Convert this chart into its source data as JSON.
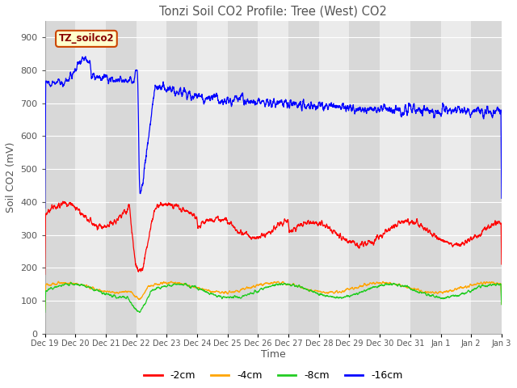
{
  "title": "Tonzi Soil CO2 Profile: Tree (West) CO2",
  "ylabel": "Soil CO2 (mV)",
  "xlabel": "Time",
  "legend_label": "TZ_soilco2",
  "ylim": [
    0,
    950
  ],
  "yticks": [
    0,
    100,
    200,
    300,
    400,
    500,
    600,
    700,
    800,
    900
  ],
  "series": {
    "-2cm": {
      "color": "#ff0000"
    },
    "-4cm": {
      "color": "#ffa500"
    },
    "-8cm": {
      "color": "#22cc22"
    },
    "-16cm": {
      "color": "#0000ff"
    }
  },
  "plot_bg_color": "#e8e8e8",
  "band_color_dark": "#d8d8d8",
  "band_color_light": "#ebebeb",
  "title_color": "#555555",
  "axis_label_color": "#555555",
  "tick_label_color": "#555555",
  "tick_labels": [
    "Dec 19",
    "Dec 20",
    "Dec 21",
    "Dec 22",
    "Dec 23",
    "Dec 24",
    "Dec 25",
    "Dec 26",
    "Dec 27",
    "Dec 28",
    "Dec 29",
    "Dec 30",
    "Dec 31",
    "Jan 1",
    "Jan 2",
    "Jan 3"
  ],
  "n_days": 15
}
